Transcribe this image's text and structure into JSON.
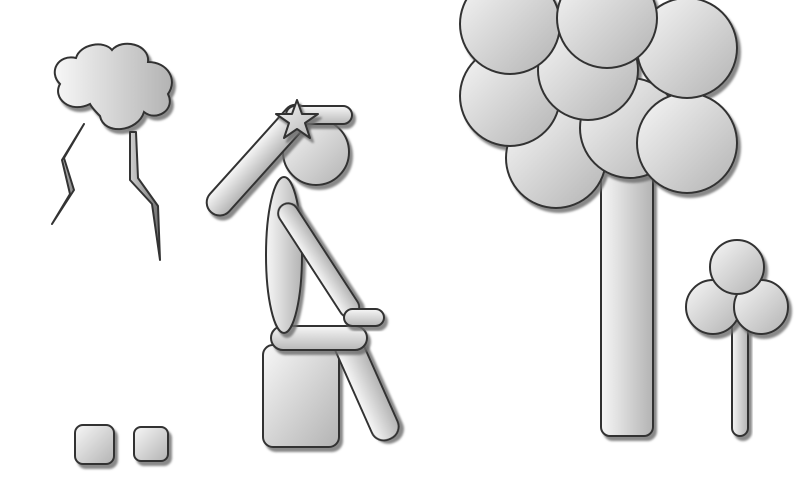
{
  "scene": {
    "background_color": "#ffffff",
    "outline_color": "#333333",
    "fill_light": "#f5f5f5",
    "fill_dark": "#b8b8b8",
    "shadow_color": "#7a7a7a",
    "elements": [
      "storm-cloud-icon",
      "lightning-bolt-icon",
      "seated-figure",
      "hammer-icon",
      "impact-star-icon",
      "large-tree-icon",
      "small-tree-icon",
      "block-stool",
      "small-cube-icon"
    ]
  }
}
